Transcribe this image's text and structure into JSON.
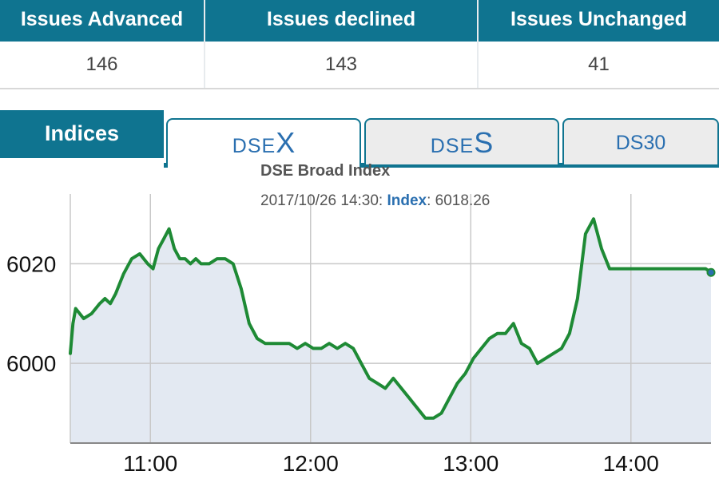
{
  "stats": {
    "headers": [
      "Issues Advanced",
      "Issues declined",
      "Issues Unchanged"
    ],
    "values": [
      "146",
      "143",
      "41"
    ]
  },
  "tabs": {
    "section_label": "Indices",
    "items": [
      {
        "prefix": "DSE",
        "suffix": "X"
      },
      {
        "prefix": "DSE",
        "suffix": "S"
      },
      {
        "label": "DS30"
      }
    ],
    "active": 0
  },
  "chart": {
    "title": "DSE Broad Index",
    "tooltip_time": "2017/10/26 14:30:",
    "tooltip_key": "Index",
    "tooltip_sep": ":",
    "tooltip_value": "6018.26"
  },
  "colors": {
    "header_bg": "#0f7490",
    "line": "#1e8a35",
    "area": "#e3e9f2",
    "tab_text": "#2a6fb0"
  },
  "chart_data": {
    "type": "area",
    "title": "DSE Broad Index",
    "xlabel": "",
    "ylabel": "",
    "x_ticks": [
      "11:00",
      "12:00",
      "13:00",
      "14:00"
    ],
    "y_ticks": [
      6000,
      6020
    ],
    "xlim": [
      "10:30",
      "14:30"
    ],
    "ylim": [
      5984,
      6034
    ],
    "series": [
      {
        "x": [
          "10:30",
          "10:31",
          "10:32",
          "10:35",
          "10:38",
          "10:41",
          "10:43",
          "10:45",
          "10:47",
          "10:50",
          "10:53",
          "10:56",
          "10:59",
          "11:01",
          "11:03",
          "11:05",
          "11:07",
          "11:09",
          "11:11",
          "11:13",
          "11:15",
          "11:17",
          "11:19",
          "11:22",
          "11:25",
          "11:28",
          "11:31",
          "11:34",
          "11:37",
          "11:40",
          "11:43",
          "11:46",
          "11:49",
          "11:52",
          "11:55",
          "11:58",
          "12:01",
          "12:04",
          "12:07",
          "12:10",
          "12:13",
          "12:16",
          "12:19",
          "12:22",
          "12:25",
          "12:28",
          "12:31",
          "12:34",
          "12:37",
          "12:40",
          "12:43",
          "12:46",
          "12:49",
          "12:52",
          "12:55",
          "12:58",
          "13:01",
          "13:04",
          "13:07",
          "13:10",
          "13:13",
          "13:16",
          "13:19",
          "13:22",
          "13:25",
          "13:28",
          "13:31",
          "13:34",
          "13:37",
          "13:40",
          "13:43",
          "13:46",
          "13:49",
          "13:52",
          "13:55",
          "13:58",
          "14:01",
          "14:04",
          "14:07",
          "14:10",
          "14:13",
          "14:16",
          "14:19",
          "14:22",
          "14:25",
          "14:27",
          "14:28",
          "14:30"
        ],
        "y": [
          6002,
          6008,
          6011,
          6009,
          6010,
          6012,
          6013,
          6012,
          6014,
          6018,
          6021,
          6022,
          6020,
          6019,
          6023,
          6025,
          6027,
          6023,
          6021,
          6021,
          6020,
          6021,
          6020,
          6020,
          6021,
          6021,
          6020,
          6015,
          6008,
          6005,
          6004,
          6004,
          6004,
          6004,
          6003,
          6004,
          6003,
          6003,
          6004,
          6003,
          6004,
          6003,
          6000,
          5997,
          5996,
          5995,
          5997,
          5995,
          5993,
          5991,
          5989,
          5989,
          5990,
          5993,
          5996,
          5998,
          6001,
          6003,
          6005,
          6006,
          6006,
          6008,
          6004,
          6003,
          6000,
          6001,
          6002,
          6003,
          6006,
          6013,
          6026,
          6029,
          6023,
          6019,
          6019,
          6019,
          6019,
          6019,
          6019,
          6019,
          6019,
          6019,
          6019,
          6019,
          6019,
          6019,
          6019,
          6018.26
        ]
      }
    ]
  }
}
